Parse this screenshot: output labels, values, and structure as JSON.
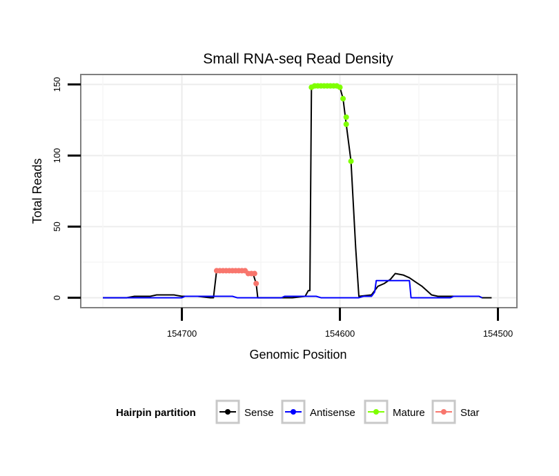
{
  "chart_data": {
    "type": "line",
    "title": "Small RNA-seq Read Density",
    "xlabel": "Genomic Position",
    "ylabel": "Total Reads",
    "x_reversed": true,
    "xlim": [
      154764,
      154488
    ],
    "ylim": [
      -7,
      157
    ],
    "x_ticks": [
      154700,
      154600,
      154500
    ],
    "x_tick_labels": [
      "154700",
      "154600",
      "154500"
    ],
    "y_ticks": [
      0,
      50,
      100,
      150
    ],
    "y_tick_labels": [
      "0",
      "50",
      "100",
      "150"
    ],
    "grid": true,
    "legend": {
      "title": "Hairpin partition",
      "placement": "bottom",
      "entries": [
        "Sense",
        "Antisense",
        "Mature",
        "Star"
      ]
    },
    "series": [
      {
        "name": "Sense",
        "color": "#000000",
        "style": "line",
        "points": [
          [
            154750,
            0
          ],
          [
            154740,
            0
          ],
          [
            154735,
            0
          ],
          [
            154730,
            1
          ],
          [
            154720,
            1
          ],
          [
            154716,
            2
          ],
          [
            154705,
            2
          ],
          [
            154700,
            1
          ],
          [
            154690,
            1
          ],
          [
            154682,
            0
          ],
          [
            154680,
            0
          ],
          [
            154678,
            19
          ],
          [
            154668,
            19
          ],
          [
            154660,
            19
          ],
          [
            154658,
            17
          ],
          [
            154655,
            17
          ],
          [
            154653,
            10
          ],
          [
            154652,
            0
          ],
          [
            154640,
            0
          ],
          [
            154630,
            0
          ],
          [
            154622,
            1
          ],
          [
            154620,
            5
          ],
          [
            154619,
            5
          ],
          [
            154618,
            148
          ],
          [
            154605,
            149
          ],
          [
            154600,
            148
          ],
          [
            154598,
            140
          ],
          [
            154596,
            122
          ],
          [
            154593,
            96
          ],
          [
            154590,
            35
          ],
          [
            154588,
            1
          ],
          [
            154580,
            2
          ],
          [
            154578,
            5
          ],
          [
            154576,
            8
          ],
          [
            154572,
            10
          ],
          [
            154568,
            13
          ],
          [
            154565,
            17
          ],
          [
            154560,
            16
          ],
          [
            154556,
            14
          ],
          [
            154552,
            11
          ],
          [
            154548,
            8
          ],
          [
            154545,
            5
          ],
          [
            154542,
            2
          ],
          [
            154538,
            1
          ],
          [
            154530,
            1
          ],
          [
            154525,
            1
          ],
          [
            154512,
            1
          ],
          [
            154510,
            0
          ],
          [
            154504,
            0
          ]
        ]
      },
      {
        "name": "Antisense",
        "color": "#0000ff",
        "style": "line",
        "points": [
          [
            154750,
            0
          ],
          [
            154700,
            0
          ],
          [
            154698,
            1
          ],
          [
            154668,
            1
          ],
          [
            154665,
            0
          ],
          [
            154637,
            0
          ],
          [
            154635,
            1
          ],
          [
            154615,
            1
          ],
          [
            154612,
            0
          ],
          [
            154588,
            0
          ],
          [
            154585,
            1
          ],
          [
            154580,
            1
          ],
          [
            154578,
            4
          ],
          [
            154577,
            12
          ],
          [
            154568,
            12
          ],
          [
            154558,
            12
          ],
          [
            154556,
            12
          ],
          [
            154555,
            0
          ],
          [
            154530,
            0
          ],
          [
            154528,
            1
          ],
          [
            154512,
            1
          ],
          [
            154510,
            0
          ]
        ]
      },
      {
        "name": "Mature",
        "color": "#7fff00",
        "style": "points",
        "points": [
          [
            154618,
            148
          ],
          [
            154616,
            149
          ],
          [
            154614,
            149
          ],
          [
            154612,
            149
          ],
          [
            154610,
            149
          ],
          [
            154608,
            149
          ],
          [
            154606,
            149
          ],
          [
            154604,
            149
          ],
          [
            154602,
            149
          ],
          [
            154600,
            148
          ],
          [
            154598,
            140
          ],
          [
            154596,
            127
          ],
          [
            154596,
            122
          ],
          [
            154593,
            96
          ]
        ]
      },
      {
        "name": "Star",
        "color": "#f8766d",
        "style": "points",
        "points": [
          [
            154678,
            19
          ],
          [
            154676,
            19
          ],
          [
            154674,
            19
          ],
          [
            154672,
            19
          ],
          [
            154670,
            19
          ],
          [
            154668,
            19
          ],
          [
            154666,
            19
          ],
          [
            154664,
            19
          ],
          [
            154662,
            19
          ],
          [
            154660,
            19
          ],
          [
            154658,
            17
          ],
          [
            154656,
            17
          ],
          [
            154654,
            17
          ],
          [
            154653,
            10
          ]
        ]
      }
    ]
  }
}
